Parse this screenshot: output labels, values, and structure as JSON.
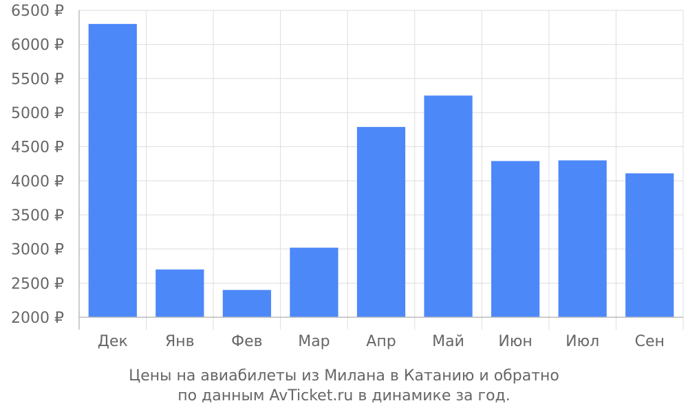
{
  "chart_data": {
    "type": "bar",
    "categories": [
      "Дек",
      "Янв",
      "Фев",
      "Мар",
      "Апр",
      "Май",
      "Июн",
      "Июл",
      "Сен"
    ],
    "values": [
      6300,
      2700,
      2400,
      3020,
      4790,
      5250,
      4290,
      4300,
      4110
    ],
    "ylim": [
      2000,
      6500
    ],
    "yticks": [
      2000,
      2500,
      3000,
      3500,
      4000,
      4500,
      5000,
      5500,
      6000,
      6500
    ],
    "y_unit": "₽",
    "grid": true,
    "bar_color": "#4d88f9",
    "grid_color": "#dddddd",
    "axis_color": "#bbbbbb",
    "text_color": "#666666"
  },
  "caption": {
    "line1": "Цены на авиабилеты из Милана в Катанию и обратно",
    "line2": "по данным AvTicket.ru в динамике за год."
  }
}
